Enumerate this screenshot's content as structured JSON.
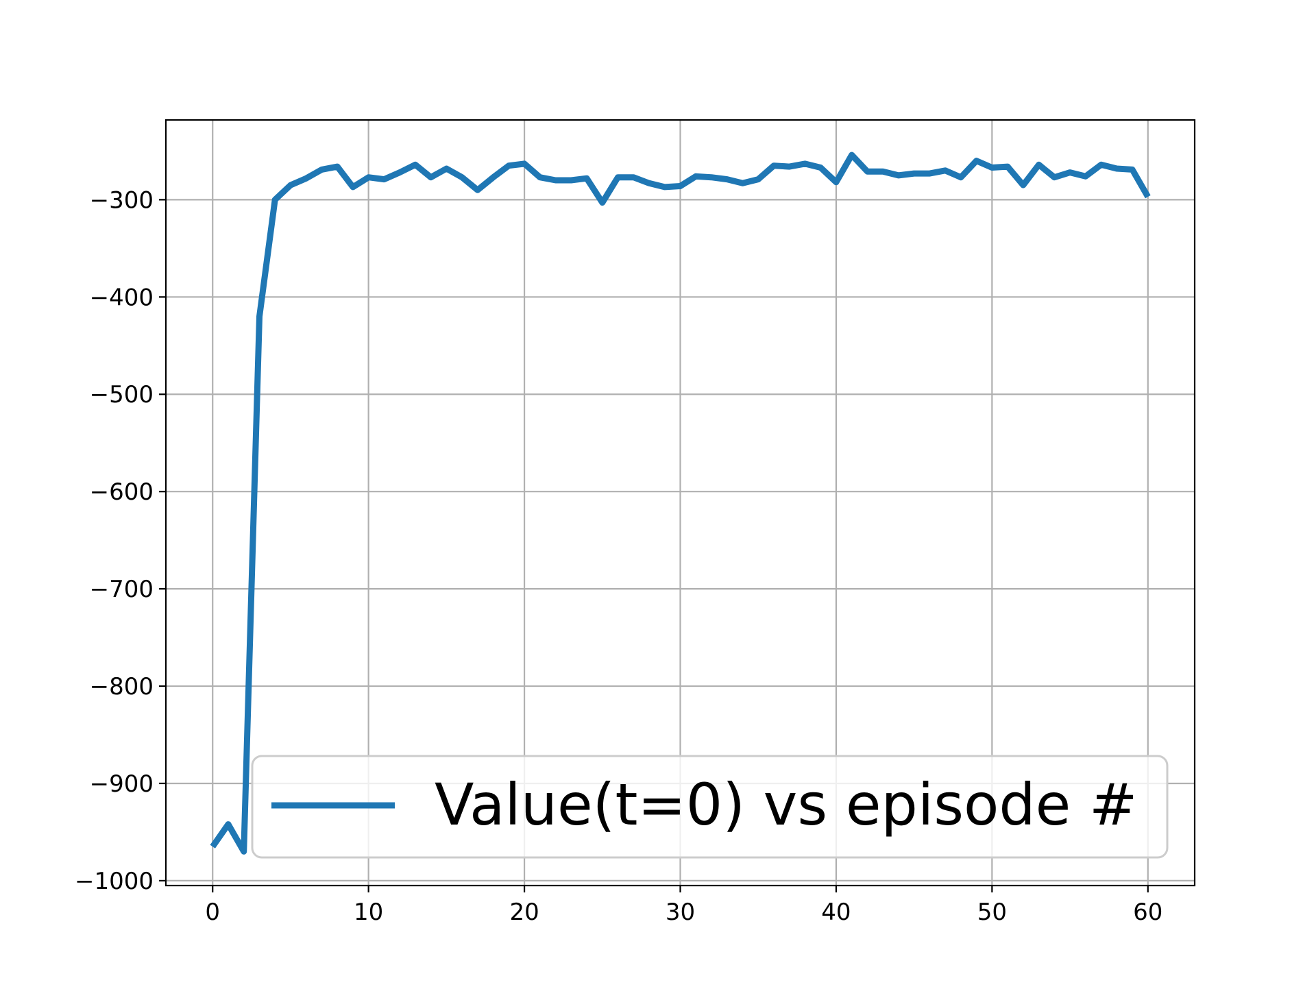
{
  "chart_data": {
    "type": "line",
    "title": "",
    "xlabel": "",
    "ylabel": "",
    "xlim": [
      -3,
      63
    ],
    "ylim": [
      -1005,
      -218
    ],
    "xticks": [
      0,
      10,
      20,
      30,
      40,
      50,
      60
    ],
    "yticks": [
      -1000,
      -900,
      -800,
      -700,
      -600,
      -500,
      -400,
      -300
    ],
    "xtick_labels": [
      "0",
      "10",
      "20",
      "30",
      "40",
      "50",
      "60"
    ],
    "ytick_labels": [
      "−1000",
      "−900",
      "−800",
      "−700",
      "−600",
      "−500",
      "−400",
      "−300"
    ],
    "grid": true,
    "legend_position": "lower-right",
    "series": [
      {
        "name": "Value(t=0) vs episode #",
        "color": "#1f77b4",
        "x": [
          0,
          1,
          2,
          3,
          4,
          5,
          6,
          7,
          8,
          9,
          10,
          11,
          12,
          13,
          14,
          15,
          16,
          17,
          18,
          19,
          20,
          21,
          22,
          23,
          24,
          25,
          26,
          27,
          28,
          29,
          30,
          31,
          32,
          33,
          34,
          35,
          36,
          37,
          38,
          39,
          40,
          41,
          42,
          43,
          44,
          45,
          46,
          47,
          48,
          49,
          50,
          51,
          52,
          53,
          54,
          55,
          56,
          57,
          58,
          59,
          60
        ],
        "values": [
          -965,
          -942,
          -970,
          -420,
          -300,
          -285,
          -278,
          -269,
          -266,
          -287,
          -277,
          -279,
          -272,
          -264,
          -277,
          -268,
          -277,
          -290,
          -277,
          -265,
          -263,
          -277,
          -280,
          -280,
          -278,
          -303,
          -277,
          -277,
          -283,
          -287,
          -286,
          -276,
          -277,
          -279,
          -283,
          -279,
          -265,
          -266,
          -263,
          -267,
          -282,
          -254,
          -271,
          -271,
          -275,
          -273,
          -273,
          -270,
          -277,
          -260,
          -267,
          -266,
          -285,
          -264,
          -277,
          -272,
          -276,
          -264,
          -268,
          -269,
          -297
        ]
      }
    ]
  }
}
